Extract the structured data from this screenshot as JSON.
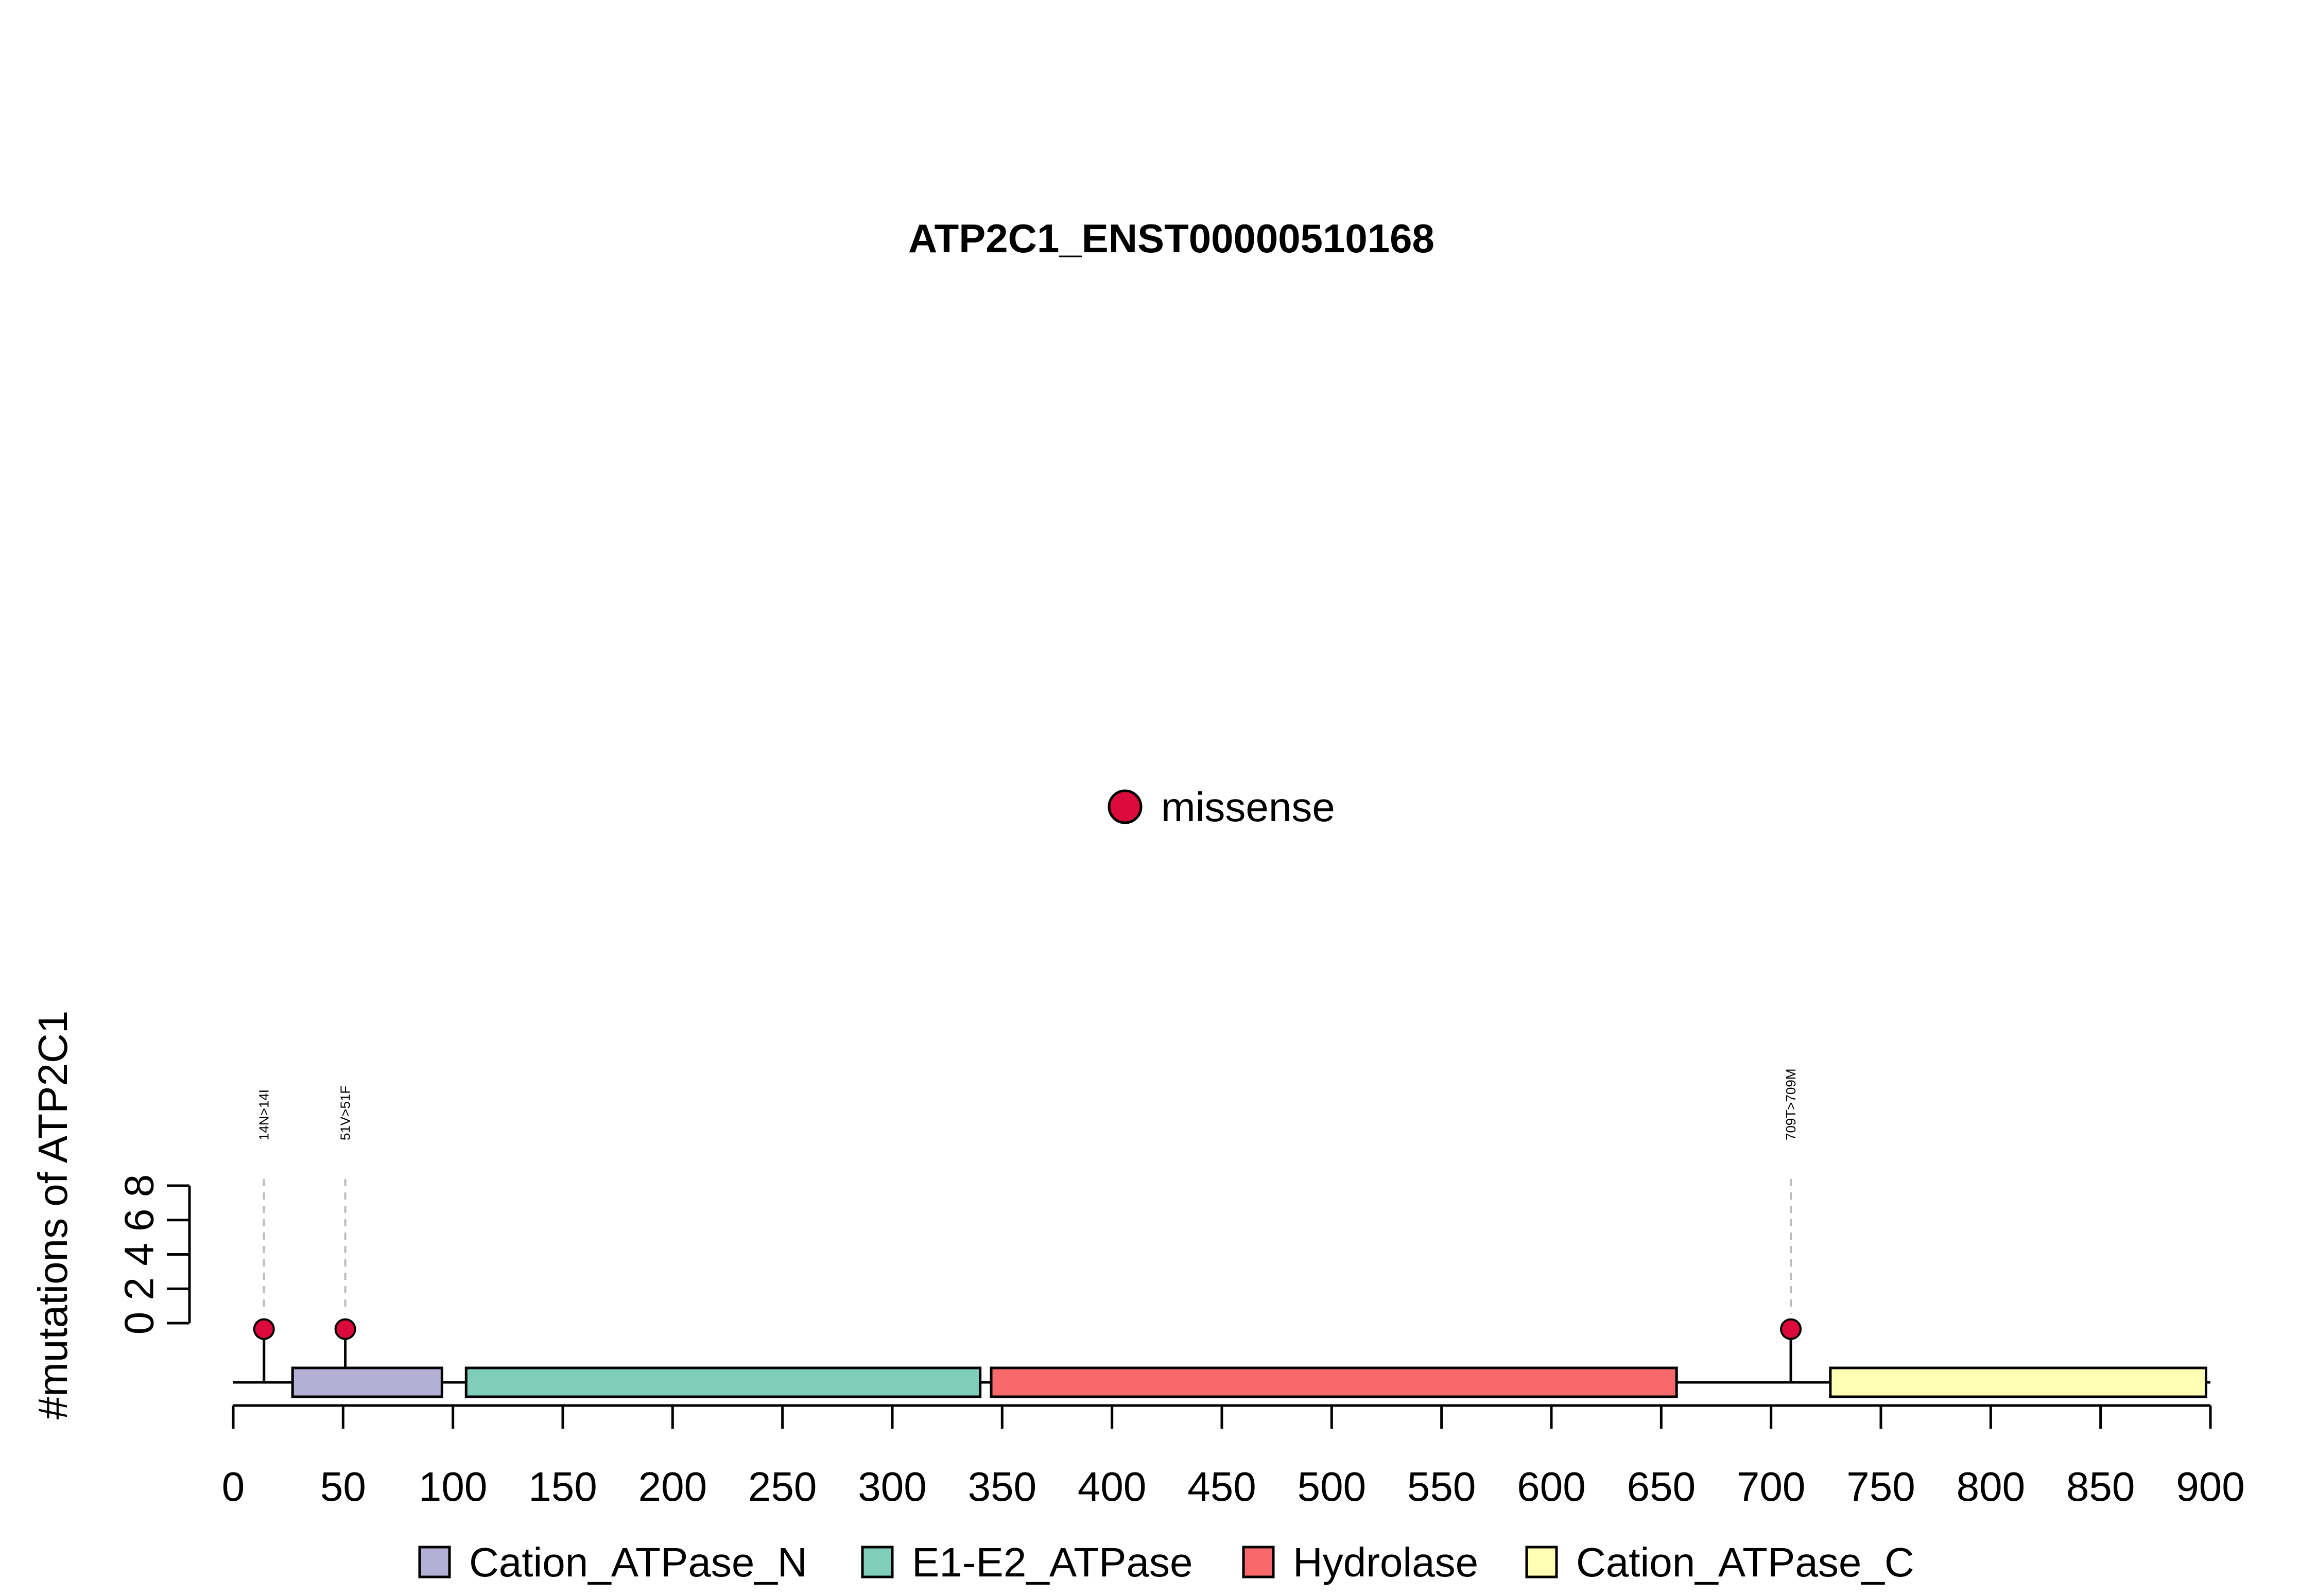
{
  "chart_data": {
    "type": "lollipop",
    "title": "ATP2C1_ENST00000510168",
    "ylabel": "#mutations of ATP2C1",
    "xlim": [
      0,
      900
    ],
    "x_ticks": [
      0,
      50,
      100,
      150,
      200,
      250,
      300,
      350,
      400,
      450,
      500,
      550,
      600,
      650,
      700,
      750,
      800,
      850,
      900
    ],
    "y_ticks": [
      0,
      2,
      4,
      6,
      8
    ],
    "protein_length": 900,
    "domains": [
      {
        "name": "Cation_ATPase_N",
        "start": 27,
        "end": 95,
        "color": "#B3AFD5"
      },
      {
        "name": "E1-E2_ATPase",
        "start": 106,
        "end": 340,
        "color": "#7FCDBB"
      },
      {
        "name": "Hydrolase",
        "start": 345,
        "end": 657,
        "color": "#F8696B"
      },
      {
        "name": "Cation_ATPase_C",
        "start": 727,
        "end": 898,
        "color": "#FFFFB3"
      }
    ],
    "mutations": [
      {
        "label": "14N>14I",
        "position": 14,
        "count": 1,
        "type": "missense"
      },
      {
        "label": "51V>51F",
        "position": 51,
        "count": 1,
        "type": "missense"
      },
      {
        "label": "709T>709M",
        "position": 709,
        "count": 1,
        "type": "missense"
      }
    ],
    "mutation_legend": [
      {
        "name": "missense",
        "color": "#DC0A3C"
      }
    ]
  }
}
